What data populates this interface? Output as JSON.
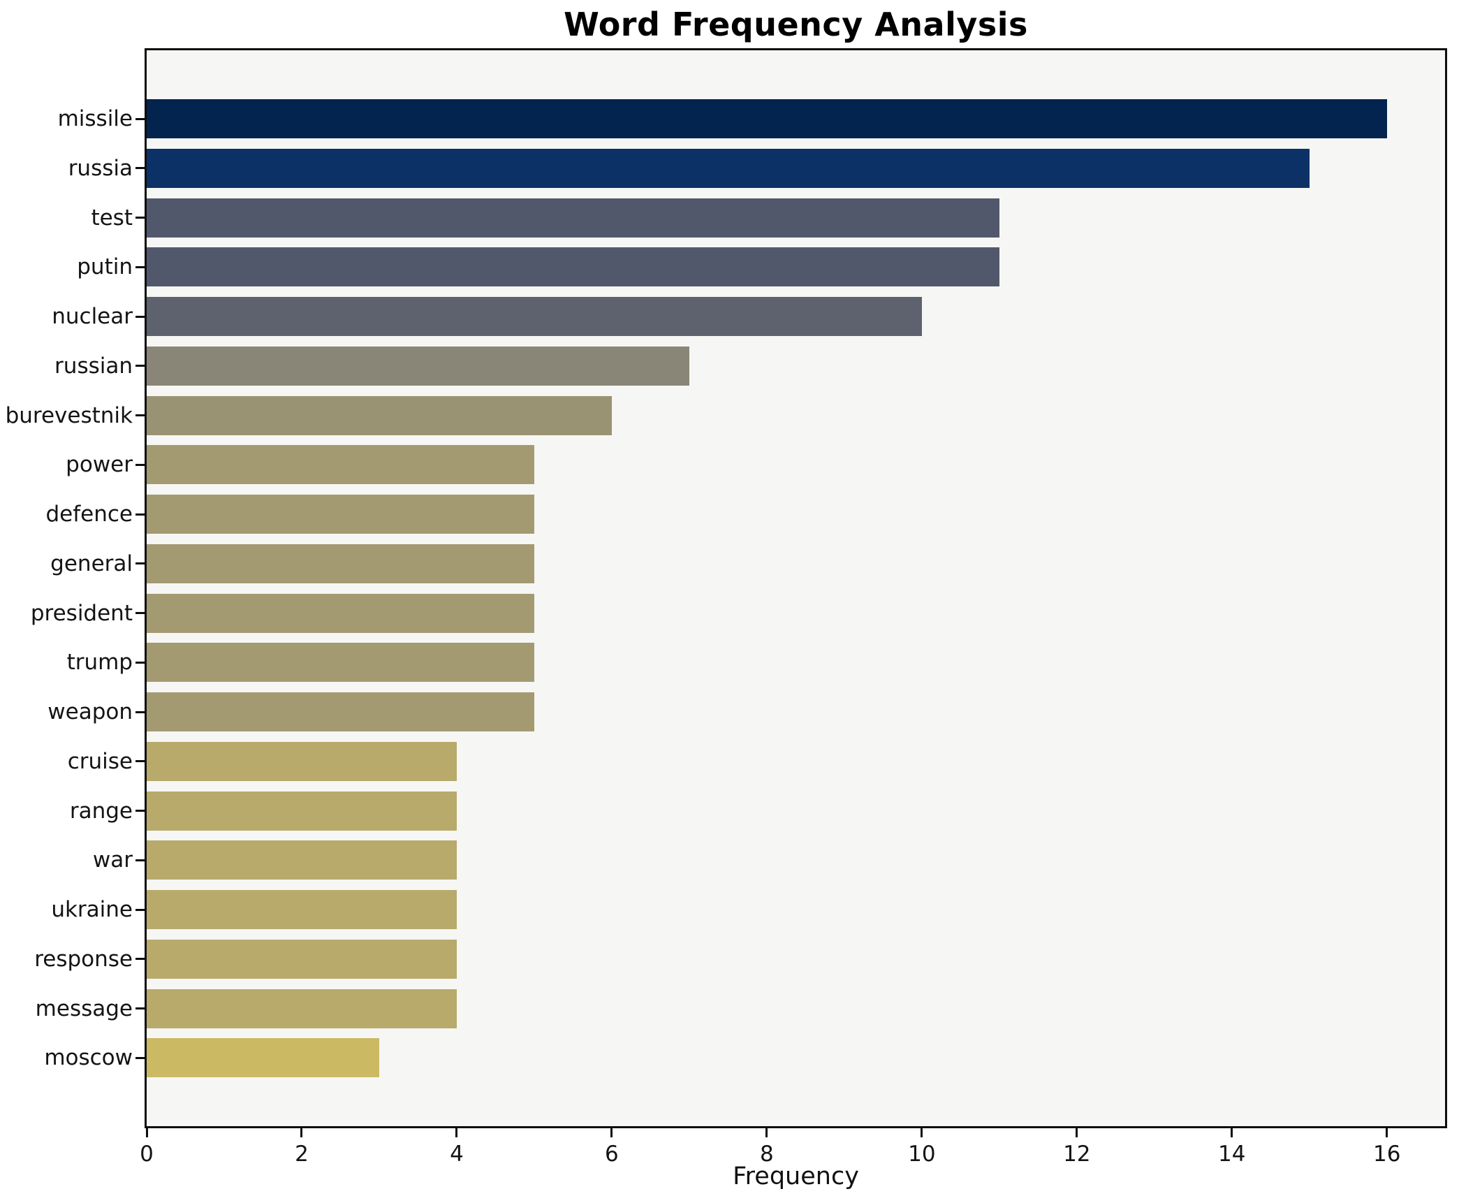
{
  "figure": {
    "background": "#ffffff"
  },
  "chart_data": {
    "type": "bar",
    "orientation": "horizontal",
    "title": "Word Frequency Analysis",
    "xlabel": "Frequency",
    "ylabel": "",
    "categories": [
      "missile",
      "russia",
      "test",
      "putin",
      "nuclear",
      "russian",
      "burevestnik",
      "power",
      "defence",
      "general",
      "president",
      "trump",
      "weapon",
      "cruise",
      "range",
      "war",
      "ukraine",
      "response",
      "message",
      "moscow"
    ],
    "values": [
      16,
      15,
      11,
      11,
      10,
      7,
      6,
      5,
      5,
      5,
      5,
      5,
      5,
      4,
      4,
      4,
      4,
      4,
      4,
      3
    ],
    "bar_colors": [
      "#02244e",
      "#0c3166",
      "#52586c",
      "#52586c",
      "#5e626e",
      "#8a8677",
      "#999273",
      "#a49a72",
      "#a49a72",
      "#a49a72",
      "#a49a72",
      "#a49a72",
      "#a49a72",
      "#b7aa6b",
      "#b7aa6b",
      "#b7aa6b",
      "#b7aa6b",
      "#b7aa6b",
      "#b7aa6b",
      "#ccb964"
    ],
    "x_ticks": [
      0,
      2,
      4,
      6,
      8,
      10,
      12,
      14,
      16
    ],
    "xlim": [
      0,
      16.75
    ],
    "grid": false,
    "legend": "none",
    "axes_background": "#f6f6f4",
    "spine_color": "#0e0e0e",
    "tick_label_color": "#141414",
    "colormap": "cividis-reversed-by-value"
  }
}
